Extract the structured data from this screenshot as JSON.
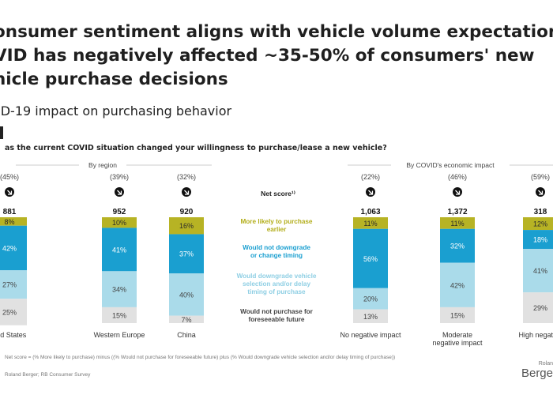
{
  "header": {
    "title_lines": [
      "onsumer sentiment aligns with vehicle volume expectation",
      "VID has negatively affected ~35-50% of consumers' new",
      "hicle purchase decisions"
    ],
    "subtitle": "ID-19 impact on purchasing behavior",
    "question": "as the current COVID situation changed your willingness to purchase/lease a new vehicle?"
  },
  "chart_data": {
    "type": "bar",
    "stacked": true,
    "normalized_percent": true,
    "groups": [
      "By region",
      "By COVID's economic impact"
    ],
    "categories": [
      "United States",
      "Western Europe",
      "China",
      "No negative impact",
      "Moderate negative impact",
      "High negative"
    ],
    "category_labels": [
      "ited States",
      "Western Europe",
      "China",
      "No negative impact",
      "Moderate\nnegative impact",
      "High negative"
    ],
    "net_scores": [
      "(45%)",
      "(39%)",
      "(32%)",
      "(22%)",
      "(46%)",
      "(59%)"
    ],
    "sample_sizes": [
      "881",
      "952",
      "920",
      "1,063",
      "1,372",
      "318"
    ],
    "net_score_label": "Net score¹⁾",
    "series": [
      {
        "name": "More likely to purchase earlier",
        "label_lines": [
          "More likely to purchase",
          "earlier"
        ],
        "color": "#b7b324",
        "text_color": "#b3ae1b",
        "values": [
          8,
          10,
          16,
          11,
          11,
          12
        ]
      },
      {
        "name": "Would not downgrade or change timing",
        "label_lines": [
          "Would not downgrade",
          "or change timing"
        ],
        "color": "#1a9fd0",
        "text_color": "#1a9fd0",
        "values": [
          42,
          41,
          37,
          56,
          32,
          18
        ]
      },
      {
        "name": "Would downgrade vehicle selection and/or delay timing of purchase",
        "label_lines": [
          "Would downgrade vehicle",
          "selection and/or delay",
          "timing of purchase"
        ],
        "color": "#aadbea",
        "text_color": "#8fcfe4",
        "values": [
          27,
          34,
          40,
          20,
          42,
          41
        ]
      },
      {
        "name": "Would not purchase for foreseeable future",
        "label_lines": [
          "Would not purchase for",
          "foreseeable future"
        ],
        "color": "#e1e1e1",
        "text_color": "#444444",
        "values": [
          25,
          15,
          7,
          13,
          15,
          29
        ]
      }
    ]
  },
  "footnotes": {
    "line1": "Net score = (% More likely to purchase) minus ((% Would not purchase for foreseeable future) plus (% Would downgrade vehicle selection and/or delay timing of purchase))",
    "line2": "Roland Berger; RB Consumer Survey"
  },
  "brand": {
    "small": "Rolan",
    "name": "Berge"
  },
  "colors": {
    "olive": "#b7b324",
    "blue": "#1a9fd0",
    "lightblue": "#aadbea",
    "grey": "#e1e1e1"
  }
}
